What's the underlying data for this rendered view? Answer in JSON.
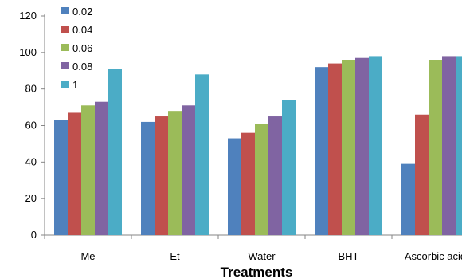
{
  "chart_data": {
    "type": "bar",
    "title": "",
    "xlabel": "Treatments",
    "ylabel": "",
    "ylim": [
      0,
      120
    ],
    "yticks": [
      "0",
      "20",
      "40",
      "60",
      "80",
      "100",
      "120"
    ],
    "grid": false,
    "legend_position": "top-left",
    "categories": [
      "Me",
      "Et",
      "Water",
      "BHT",
      "Ascorbic acid"
    ],
    "series": [
      {
        "name": "0.02",
        "color": "#4F81BD",
        "values": [
          63,
          62,
          53,
          92,
          39
        ]
      },
      {
        "name": "0.04",
        "color": "#C0504D",
        "values": [
          67,
          65,
          56,
          94,
          66
        ]
      },
      {
        "name": "0.06",
        "color": "#9BBB59",
        "values": [
          71,
          68,
          61,
          96,
          96
        ]
      },
      {
        "name": "0.08",
        "color": "#8064A2",
        "values": [
          73,
          71,
          65,
          97,
          98
        ]
      },
      {
        "name": "1",
        "color": "#4BACC6",
        "values": [
          91,
          88,
          74,
          98,
          98
        ]
      }
    ]
  }
}
